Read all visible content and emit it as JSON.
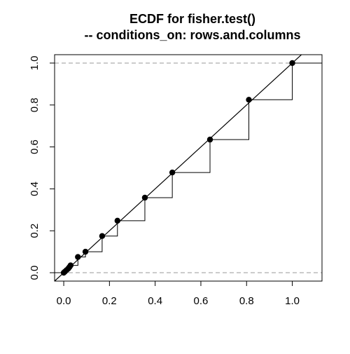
{
  "chart_data": {
    "type": "scatter",
    "title": "ECDF for fisher.test()",
    "subtitle": "-- conditions_on: rows.and.columns",
    "xlabel": "",
    "ylabel": "",
    "xlim": [
      -0.04,
      1.13
    ],
    "ylim": [
      -0.04,
      1.04
    ],
    "x_ticks": [
      "0.0",
      "0.2",
      "0.4",
      "0.6",
      "0.8",
      "1.0"
    ],
    "y_ticks": [
      "0.0",
      "0.2",
      "0.4",
      "0.6",
      "0.8",
      "1.0"
    ],
    "grid": false,
    "reference_lines": [
      {
        "kind": "horizontal",
        "y": 0.0,
        "style": "dashed",
        "color": "#9a9a9a"
      },
      {
        "kind": "horizontal",
        "y": 1.0,
        "style": "dashed",
        "color": "#9a9a9a"
      },
      {
        "kind": "diagonal",
        "slope": 1,
        "intercept": 0,
        "style": "solid",
        "color": "#000000"
      }
    ],
    "series": [
      {
        "step": true,
        "x": [
          0.0,
          0.005,
          0.012,
          0.02,
          0.025,
          0.03,
          0.062,
          0.095,
          0.168,
          0.235,
          0.355,
          0.475,
          0.64,
          0.81,
          1.0
        ],
        "y": [
          0.0,
          0.005,
          0.012,
          0.02,
          0.027,
          0.035,
          0.075,
          0.1,
          0.175,
          0.248,
          0.358,
          0.478,
          0.635,
          0.825,
          1.0
        ]
      }
    ]
  }
}
